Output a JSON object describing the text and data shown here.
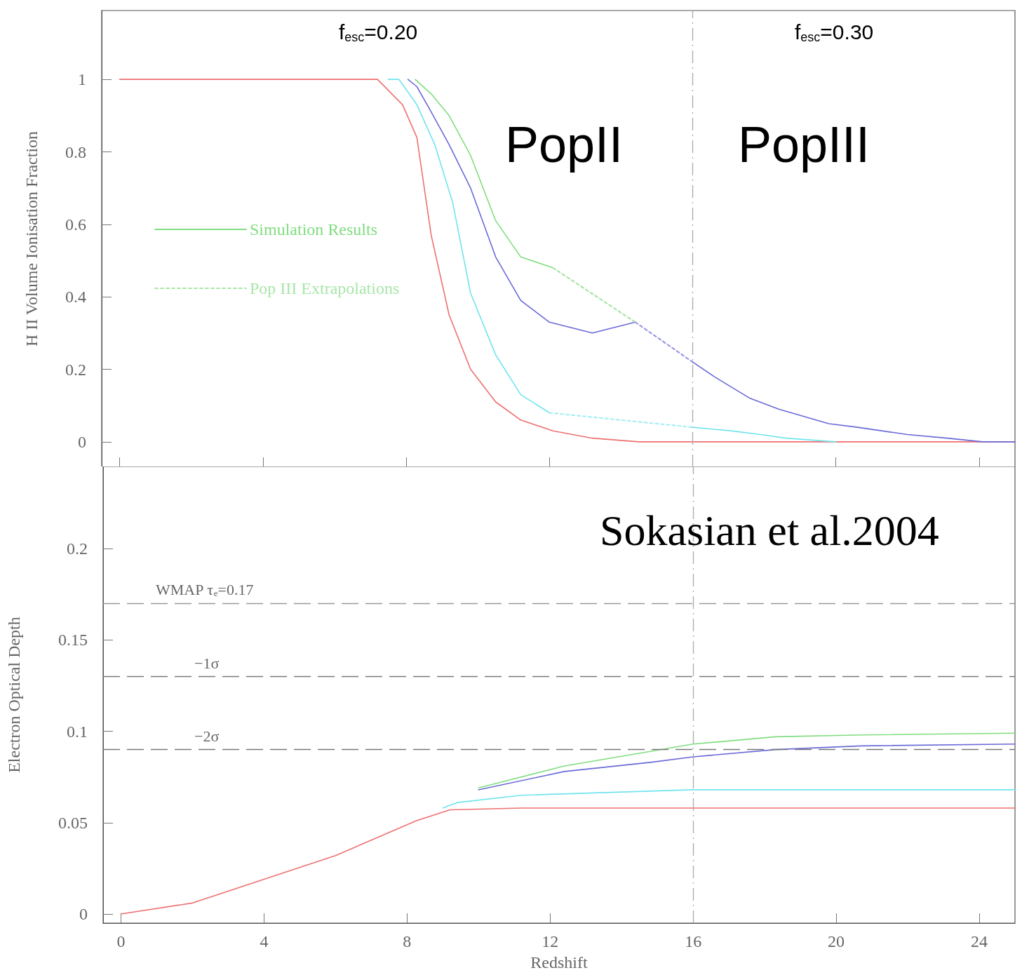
{
  "chart_data": [
    {
      "type": "line",
      "ylabel": "H II Volume Ionisation Fraction",
      "xlim": [
        -0.5,
        25
      ],
      "xticks": [
        0,
        4,
        8,
        12,
        16,
        20,
        24
      ],
      "ylim": [
        -0.07,
        1.19
      ],
      "yticks": [
        0,
        0.2,
        0.4,
        0.6,
        0.8,
        1
      ],
      "tick_labels": "y",
      "grid": false,
      "legend": "left",
      "marker": "none",
      "annotations": [
        "f$_{esc}$=0.20",
        "f$_{esc}$=0.30",
        "PopII",
        "PopIII"
      ],
      "ref_lines": [
        {
          "axis": "x",
          "value": 16,
          "color": "#aaaaaa",
          "line_style": "dashed"
        }
      ],
      "series": [
        {
          "name": "Simulation Results",
          "color": "#80dd80",
          "line_style": "solid",
          "x": [
            8.25,
            8.7,
            9.2,
            9.8,
            10.5,
            11.2,
            12.1
          ],
          "values": [
            1,
            0.96,
            0.9,
            0.79,
            0.61,
            0.51,
            0.48
          ]
        },
        {
          "color": "#6a6ad8",
          "line_style": "solid",
          "x": [
            8.05,
            8.3,
            8.7,
            9.2,
            9.8,
            10.5,
            11.2,
            12,
            13.2,
            14.4
          ],
          "values": [
            1,
            0.98,
            0.91,
            0.82,
            0.7,
            0.51,
            0.39,
            0.33,
            0.3,
            0.33
          ]
        },
        {
          "color": "#70e4ee",
          "line_style": "solid",
          "x": [
            7.5,
            7.8,
            8.3,
            8.8,
            9.3,
            9.8,
            10.5,
            11.2,
            12
          ],
          "values": [
            1,
            1,
            0.93,
            0.82,
            0.66,
            0.41,
            0.24,
            0.13,
            0.08
          ]
        },
        {
          "color": "#ee7070",
          "line_style": "solid",
          "x": [
            0,
            7.2,
            7.5,
            7.9,
            8.3,
            8.7,
            9.2,
            9.8,
            10.5,
            11.2,
            12.1,
            13.2,
            14.5,
            25
          ],
          "values": [
            1,
            1,
            0.97,
            0.93,
            0.84,
            0.57,
            0.35,
            0.2,
            0.11,
            0.06,
            0.03,
            0.01,
            0,
            0
          ]
        },
        {
          "name": "Pop III Extrapolations",
          "color": "#a8e6a8",
          "line_style": "dotted",
          "x": [
            12.1,
            14.4
          ],
          "values": [
            0.48,
            0.33
          ]
        },
        {
          "color": "#9a9ae6",
          "line_style": "dotted",
          "x": [
            14.4,
            16
          ],
          "values": [
            0.33,
            0.22
          ]
        },
        {
          "color": "#a8eef4",
          "line_style": "dotted",
          "x": [
            12,
            16
          ],
          "values": [
            0.08,
            0.04
          ]
        },
        {
          "color": "#6a6ad8",
          "line_style": "solid",
          "x": [
            16,
            16.6,
            17.6,
            18.4,
            19.8,
            20.6,
            22,
            23.1,
            24.1,
            25
          ],
          "values": [
            0.22,
            0.18,
            0.12,
            0.09,
            0.05,
            0.04,
            0.02,
            0.01,
            0,
            0
          ]
        },
        {
          "color": "#70e4ee",
          "line_style": "solid",
          "x": [
            16,
            17.1,
            17.9,
            18.6,
            20
          ],
          "values": [
            0.04,
            0.03,
            0.02,
            0.01,
            0
          ]
        }
      ]
    },
    {
      "type": "line",
      "xlabel": "Redshift",
      "ylabel": "Electron Optical Depth",
      "xlim": [
        -0.5,
        25
      ],
      "xticks": [
        0,
        4,
        8,
        12,
        16,
        20,
        24
      ],
      "ylim": [
        -0.005,
        0.245
      ],
      "yticks": [
        0,
        0.05,
        0.1,
        0.15,
        0.2
      ],
      "grid": false,
      "marker": "none",
      "annotations": [
        "Sokasian et al.2004"
      ],
      "ref_lines": [
        {
          "axis": "x",
          "value": 16,
          "color": "#aaaaaa",
          "line_style": "dashed"
        },
        {
          "axis": "y",
          "value": 0.17,
          "label": "WMAP τ$_{e}$=0.17",
          "color": "#999999",
          "line_style": "dashed"
        },
        {
          "axis": "y",
          "value": 0.13,
          "label": "−1σ",
          "color": "#777777",
          "line_style": "dashed"
        },
        {
          "axis": "y",
          "value": 0.09,
          "label": "−2σ",
          "color": "#777777",
          "line_style": "dashed"
        }
      ],
      "series": [
        {
          "color": "#80dd80",
          "x": [
            10,
            12.4,
            14.8,
            16,
            18.3,
            20.7,
            25
          ],
          "values": [
            0.069,
            0.081,
            0.089,
            0.093,
            0.097,
            0.098,
            0.099
          ]
        },
        {
          "color": "#6a6ad8",
          "x": [
            10,
            12.4,
            14.8,
            16,
            18.3,
            20.7,
            25
          ],
          "values": [
            0.068,
            0.078,
            0.083,
            0.086,
            0.09,
            0.092,
            0.093
          ]
        },
        {
          "color": "#70e4ee",
          "x": [
            9,
            9.4,
            11.2,
            16,
            25
          ],
          "values": [
            0.058,
            0.061,
            0.065,
            0.068,
            0.068
          ]
        },
        {
          "color": "#ee7070",
          "x": [
            0,
            2,
            4,
            6,
            7.9,
            8.25,
            9.2,
            11.2,
            25
          ],
          "values": [
            0,
            0.006,
            0.019,
            0.032,
            0.048,
            0.051,
            0.057,
            0.058,
            0.058
          ]
        }
      ]
    }
  ]
}
